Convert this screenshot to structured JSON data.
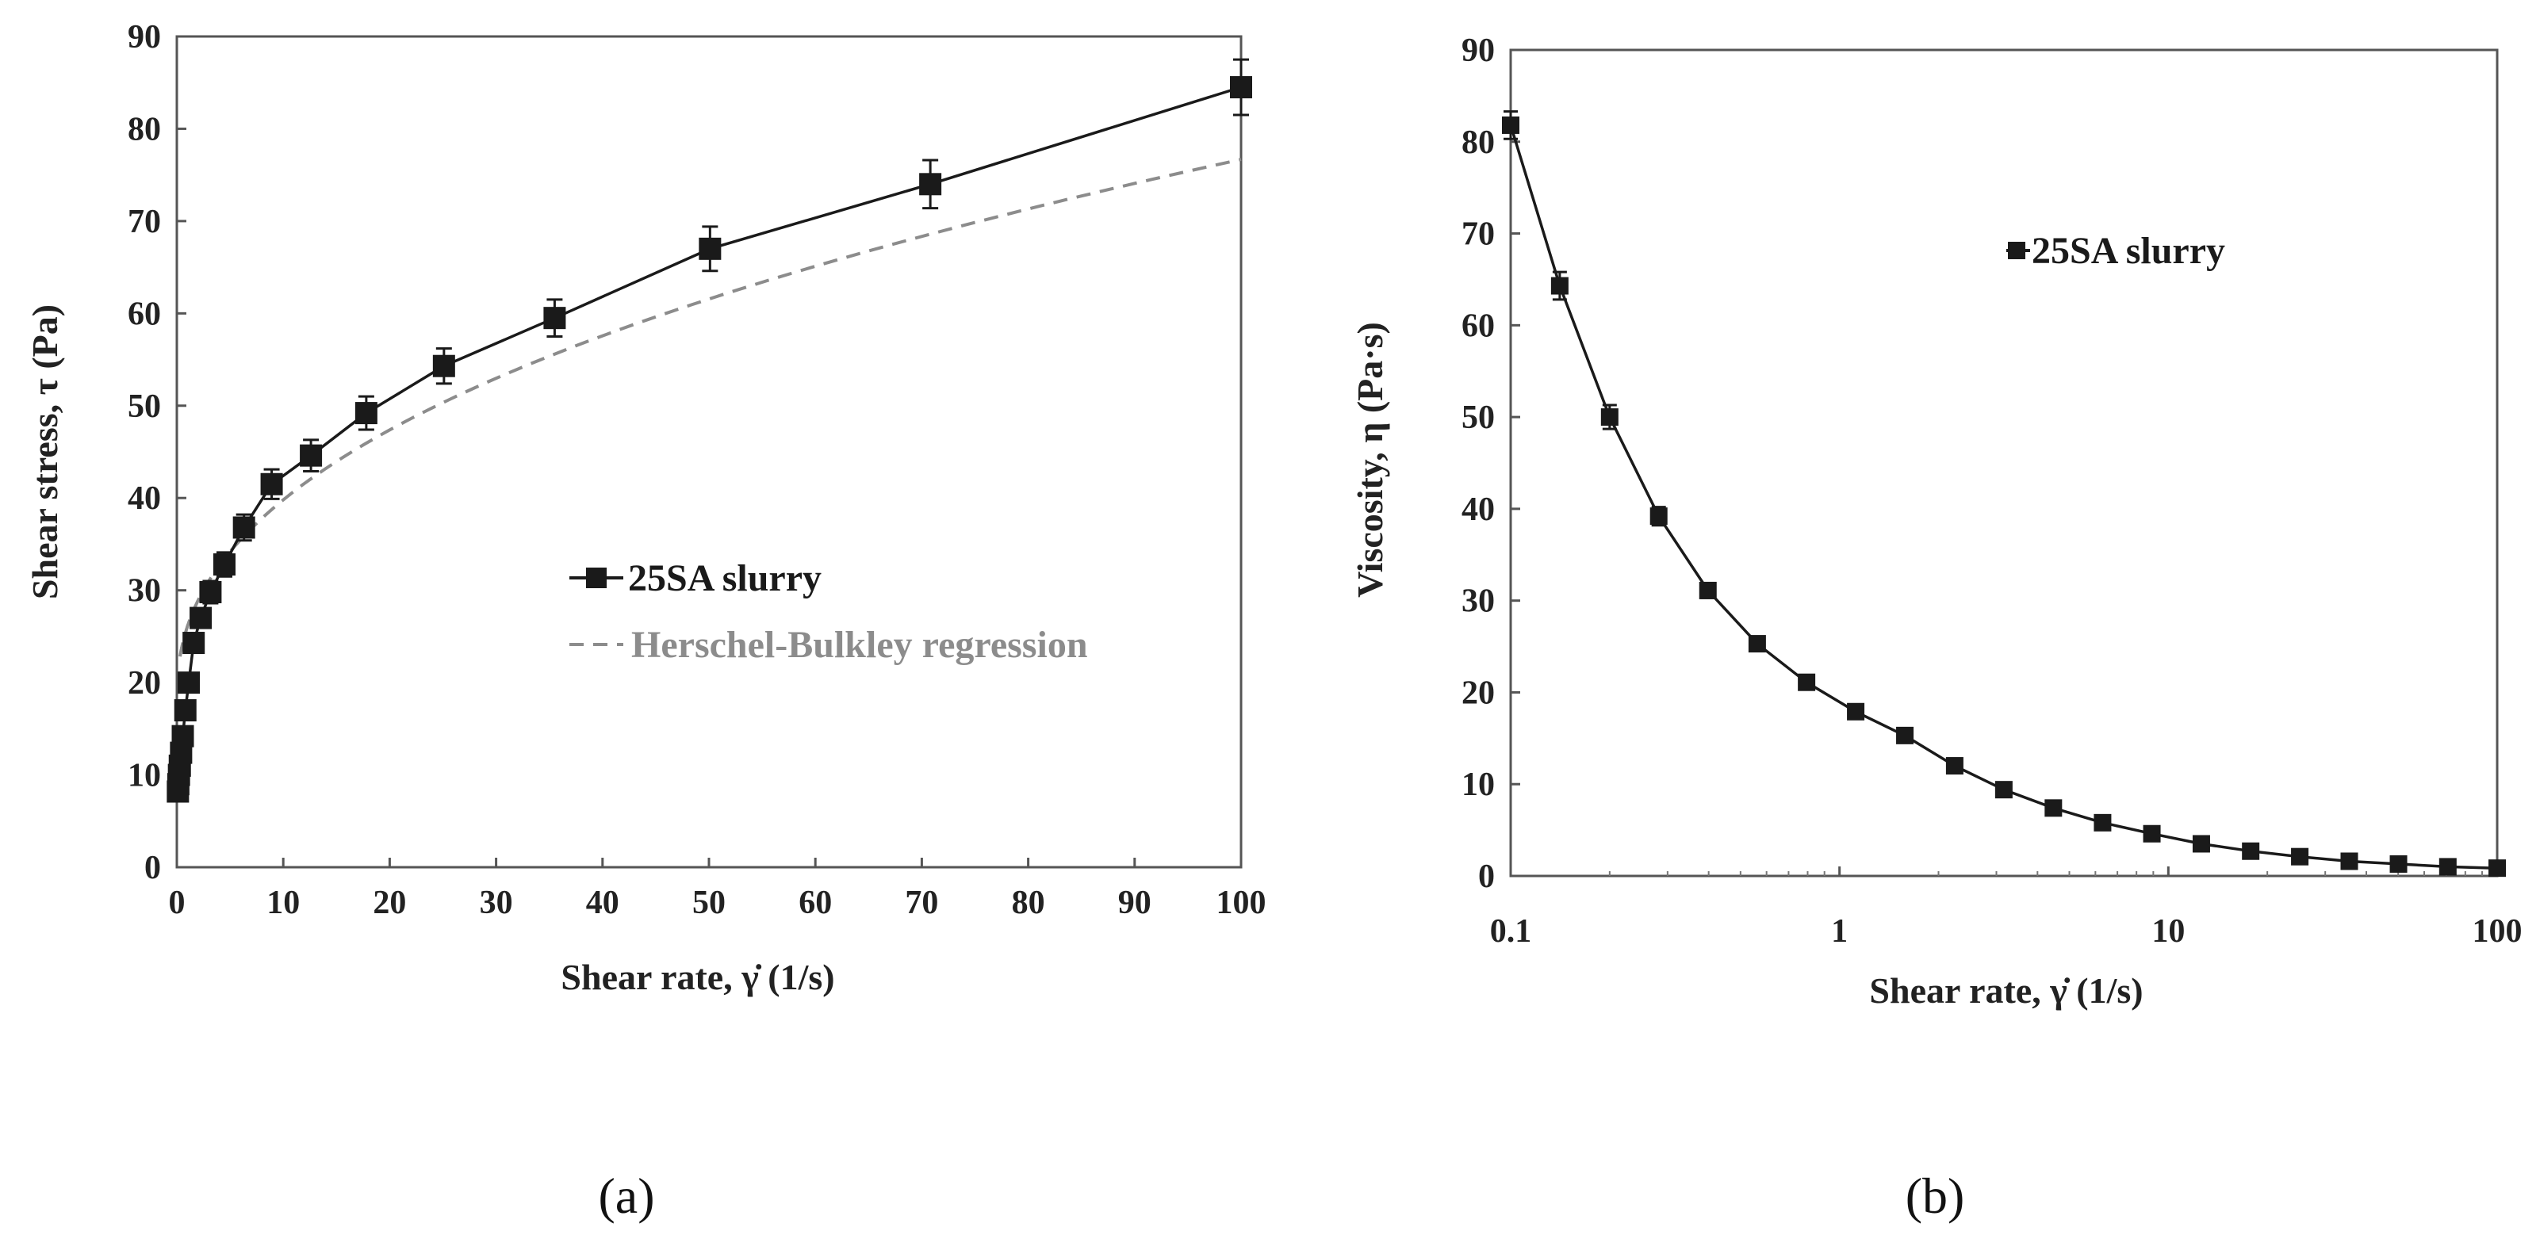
{
  "chart_data": [
    {
      "type": "line",
      "panel_label": "(a)",
      "title": "",
      "xlabel": "Shear rate, γ̇  (1/s)",
      "ylabel": "Shear stress, τ (Pa)",
      "xlim": [
        0,
        100
      ],
      "ylim": [
        0,
        90
      ],
      "xscale": "linear",
      "xticks": [
        0,
        10,
        20,
        30,
        40,
        50,
        60,
        70,
        80,
        90,
        100
      ],
      "yticks": [
        0,
        10,
        20,
        30,
        40,
        50,
        60,
        70,
        80,
        90
      ],
      "grid": false,
      "legend_position": "center",
      "series": [
        {
          "name": "25SA slurry",
          "style": "solid-line-square-markers",
          "color": "#1a1a1a",
          "x": [
            0.1,
            0.14,
            0.2,
            0.28,
            0.4,
            0.56,
            0.8,
            1.12,
            1.58,
            2.24,
            3.16,
            4.47,
            6.31,
            8.91,
            12.6,
            17.8,
            25.1,
            35.5,
            50.1,
            70.8,
            100
          ],
          "y": [
            8.2,
            9.0,
            10.0,
            11.0,
            12.4,
            14.2,
            17.0,
            20.0,
            24.3,
            27.0,
            29.8,
            32.8,
            36.8,
            41.5,
            44.6,
            49.2,
            54.3,
            59.5,
            67.0,
            74.0,
            84.5
          ],
          "error": [
            1.0,
            1.0,
            1.0,
            1.0,
            1.0,
            1.0,
            1.0,
            1.0,
            1.0,
            1.0,
            1.2,
            1.3,
            1.4,
            1.6,
            1.7,
            1.8,
            1.9,
            2.0,
            2.4,
            2.6,
            3.0
          ]
        },
        {
          "name": "Herschel-Bulkley regression",
          "style": "dashed",
          "color": "#8c8c8c",
          "model": {
            "tau0": 18.0,
            "K": 8.1,
            "n": 0.43
          }
        }
      ]
    },
    {
      "type": "line",
      "panel_label": "(b)",
      "title": "",
      "xlabel": "Shear rate, γ̇  (1/s)",
      "ylabel": "Viscosity, η (Pa·s)",
      "xlim": [
        0.1,
        100
      ],
      "ylim": [
        0,
        90
      ],
      "xscale": "log",
      "xticks": [
        0.1,
        1,
        10,
        100
      ],
      "xtick_labels": [
        "0.1",
        "1",
        "10",
        "100"
      ],
      "yticks": [
        0,
        10,
        20,
        30,
        40,
        50,
        60,
        70,
        80,
        90
      ],
      "grid": false,
      "legend_position": "upper-right",
      "series": [
        {
          "name": "25SA slurry",
          "style": "solid-line-square-markers",
          "color": "#1a1a1a",
          "x": [
            0.1,
            0.141,
            0.2,
            0.282,
            0.398,
            0.562,
            0.794,
            1.12,
            1.58,
            2.24,
            3.16,
            4.47,
            6.31,
            8.91,
            12.6,
            17.8,
            25.1,
            35.5,
            50.1,
            70.8,
            100
          ],
          "y": [
            81.8,
            64.3,
            50.0,
            39.2,
            31.1,
            25.3,
            21.1,
            17.9,
            15.3,
            12.0,
            9.4,
            7.4,
            5.8,
            4.6,
            3.5,
            2.7,
            2.1,
            1.6,
            1.3,
            1.0,
            0.85
          ],
          "error": [
            1.5,
            1.5,
            1.3,
            1.0,
            0.8,
            0.6,
            0.5,
            0.5,
            0.5,
            0.4,
            0.4,
            0.3,
            0.3,
            0.3,
            0.3,
            0.2,
            0.2,
            0.2,
            0.2,
            0.2,
            0.2
          ]
        }
      ]
    }
  ]
}
